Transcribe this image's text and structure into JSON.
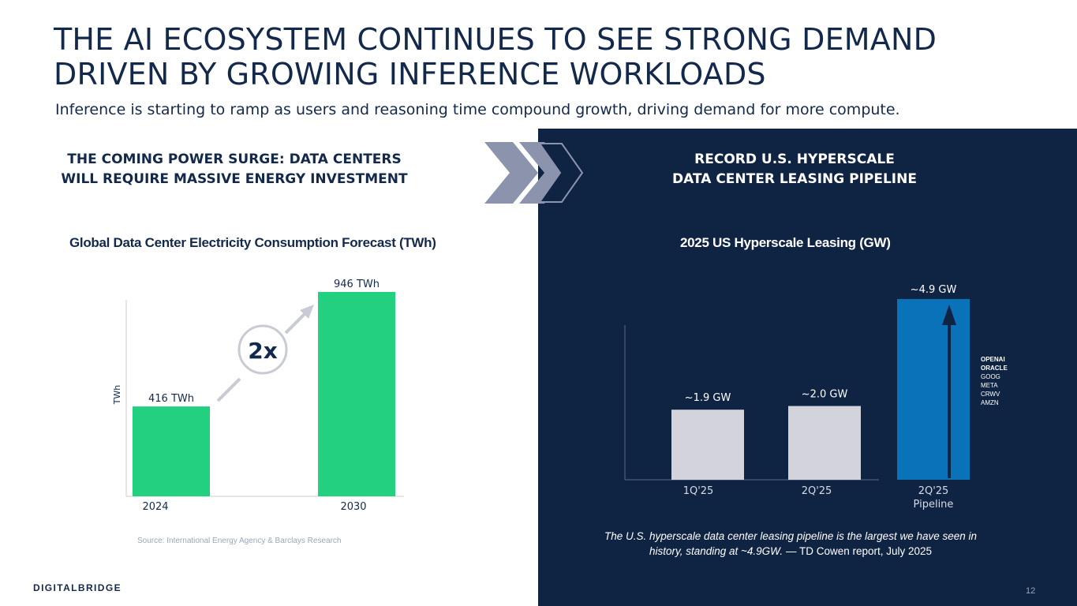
{
  "header": {
    "title_line1": "THE AI ECOSYSTEM CONTINUES TO SEE STRONG DEMAND",
    "title_line2": "DRIVEN BY GROWING INFERENCE WORKLOADS",
    "subtitle": "Inference is starting to ramp as users and reasoning time compound growth, driving demand for more compute."
  },
  "left": {
    "heading_line1": "THE COMING POWER SURGE: DATA CENTERS",
    "heading_line2": "WILL REQUIRE MASSIVE ENERGY INVESTMENT",
    "source": "Source: International Energy Agency & Barclays Research",
    "multiplier": "2x"
  },
  "right": {
    "heading_line1": "RECORD U.S. HYPERSCALE",
    "heading_line2": "DATA CENTER LEASING PIPELINE",
    "pipeline_companies": [
      {
        "name": "OPENAI",
        "bold": true
      },
      {
        "name": "ORACLE",
        "bold": true
      },
      {
        "name": "GOOG",
        "bold": false
      },
      {
        "name": "META",
        "bold": false
      },
      {
        "name": "CRWV",
        "bold": false
      },
      {
        "name": "AMZN",
        "bold": false
      }
    ],
    "quote_text": "The U.S. hyperscale data center leasing pipeline is the largest we have seen in history, standing at ~4.9GW.",
    "quote_attribution": " — TD Cowen report, July 2025"
  },
  "footer": {
    "logo": "DIGITALBRIDGE",
    "page_number": "12"
  },
  "colors": {
    "navy": "#13294b",
    "dark_panel": "#0f2343",
    "green_bar": "#22d07f",
    "gray_bar": "#d3d3dc",
    "blue_bar": "#0a72b8"
  },
  "chart_data": [
    {
      "type": "bar",
      "title": "Global Data Center Electricity Consumption Forecast (TWh)",
      "ylabel": "TWh",
      "categories": [
        "2024",
        "2030"
      ],
      "values": [
        416,
        946
      ],
      "data_labels": [
        "416 TWh",
        "946 TWh"
      ],
      "ylim": [
        0,
        946
      ]
    },
    {
      "type": "bar",
      "title": "2025 US Hyperscale Leasing (GW)",
      "categories": [
        "1Q'25",
        "2Q'25",
        "2Q'25 Pipeline"
      ],
      "values": [
        1.9,
        2.0,
        4.9
      ],
      "data_labels": [
        "~1.9 GW",
        "~2.0 GW",
        "~4.9 GW"
      ],
      "ylim": [
        0,
        4.9
      ]
    }
  ]
}
